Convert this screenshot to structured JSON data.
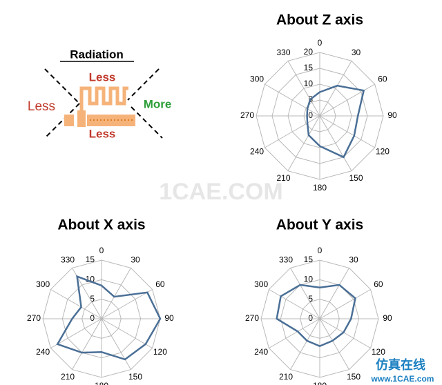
{
  "diagram": {
    "title": "Radiation",
    "top": "Less",
    "left": "Less",
    "right": "More",
    "bottom": "Less"
  },
  "watermark": "1CAE.COM",
  "footer": {
    "brand": "仿真在线",
    "url": "www.1CAE.com"
  },
  "chart_data": [
    {
      "type": "radar",
      "title": "About Z axis",
      "color": "#4a6f96",
      "categories": [
        "0",
        "30",
        "60",
        "90",
        "120",
        "150",
        "180",
        "210",
        "240",
        "270",
        "300",
        "330"
      ],
      "values": [
        7.5,
        11,
        16,
        12,
        12.5,
        15,
        9.5,
        7,
        4.5,
        4,
        4.5,
        6
      ],
      "ylim": [
        0,
        20
      ],
      "yticks": [
        0,
        5,
        10,
        15,
        20
      ]
    },
    {
      "type": "radar",
      "title": "About X axis",
      "color": "#4a6f96",
      "categories": [
        "0",
        "30",
        "60",
        "90",
        "120",
        "150",
        "180",
        "210",
        "240",
        "270",
        "300",
        "330"
      ],
      "values": [
        8.5,
        6.5,
        13.5,
        15,
        13,
        12,
        8.5,
        10,
        13,
        7.5,
        6,
        12.5
      ],
      "ylim": [
        0,
        15
      ],
      "yticks": [
        0,
        5,
        10,
        15
      ]
    },
    {
      "type": "radar",
      "title": "About Y axis",
      "color": "#4a6f96",
      "categories": [
        "0",
        "30",
        "60",
        "90",
        "120",
        "150",
        "180",
        "210",
        "240",
        "270",
        "300",
        "330"
      ],
      "values": [
        8,
        10,
        10.5,
        8,
        7,
        6.5,
        7,
        6.5,
        6.5,
        11,
        11.5,
        10
      ],
      "ylim": [
        0,
        15
      ],
      "yticks": [
        0,
        5,
        10,
        15
      ]
    }
  ]
}
